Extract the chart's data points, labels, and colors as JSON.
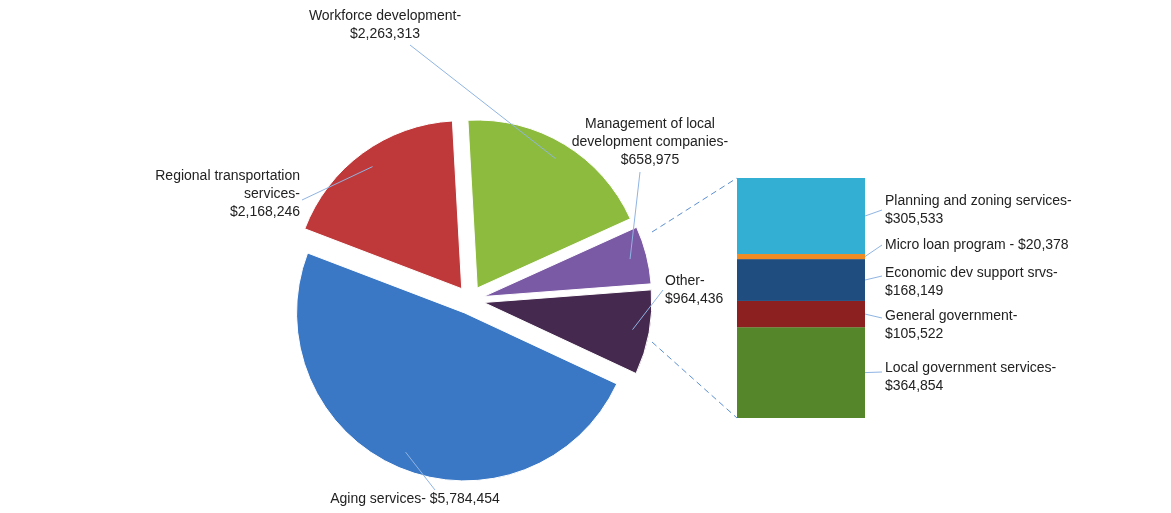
{
  "chart_data": [
    {
      "type": "pie",
      "categories": [
        "Aging services-",
        "Regional transportation services-",
        "Workforce development-",
        "Management of local development companies-",
        "Other-"
      ],
      "values": [
        5784454,
        2168246,
        2263313,
        658975,
        964436
      ],
      "value_labels": [
        "$5,784,454",
        "$2,168,246",
        "$2,263,313",
        "$658,975",
        "$964,436"
      ],
      "colors": [
        "#3a78c6",
        "#c0393a",
        "#8dbb3d",
        "#7b5aa5",
        "#45294f"
      ]
    },
    {
      "type": "bar",
      "stacked": true,
      "categories": [
        null
      ],
      "series": [
        {
          "name": "Local government services-",
          "color": "#56862a",
          "values": [
            364854
          ],
          "value_labels": [
            "$364,854"
          ]
        },
        {
          "name": "General government-",
          "color": "#8c1f1f",
          "values": [
            105522
          ],
          "value_labels": [
            "$105,522"
          ]
        },
        {
          "name": "Economic dev support srvs-",
          "color": "#1f4d80",
          "values": [
            168149
          ],
          "value_labels": [
            "$168,149"
          ]
        },
        {
          "name": "Micro loan program -",
          "color": "#f08a22",
          "values": [
            20378
          ],
          "value_labels": [
            "$20,378"
          ]
        },
        {
          "name": "Planning and zoning services-",
          "color": "#33afd3",
          "values": [
            305533
          ],
          "value_labels": [
            "$305,533"
          ]
        }
      ]
    }
  ]
}
